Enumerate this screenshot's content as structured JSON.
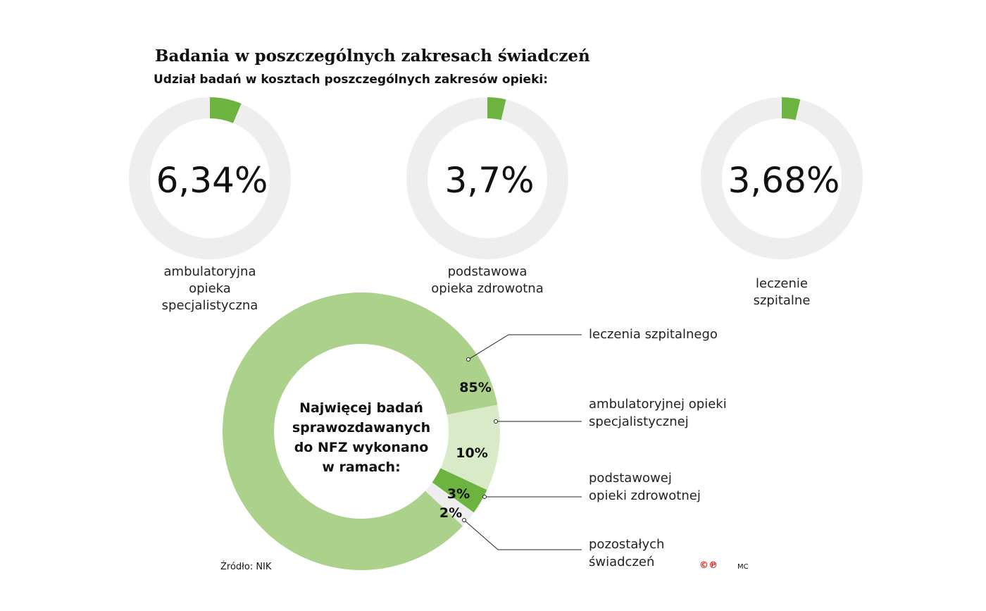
{
  "chart_data": [
    {
      "type": "pie",
      "variant": "donut",
      "title": "Badania w poszczególnych zakresach świadczeń",
      "subtitle": "Udział badań w kosztach poszczególnych zakresów opieki:",
      "label": "ambulatoryjna opieka specjalistyczna",
      "value": 6.34,
      "value_label": "6,34%",
      "colors": {
        "fill": "#6db33f",
        "track": "#eeeeee"
      }
    },
    {
      "type": "pie",
      "variant": "donut",
      "label": "podstawowa opieka zdrowotna",
      "value": 3.7,
      "value_label": "3,7%",
      "colors": {
        "fill": "#6db33f",
        "track": "#eeeeee"
      }
    },
    {
      "type": "pie",
      "variant": "donut",
      "label": "leczenie szpitalne",
      "value": 3.68,
      "value_label": "3,68%",
      "colors": {
        "fill": "#6db33f",
        "track": "#eeeeee"
      }
    },
    {
      "type": "pie",
      "variant": "donut",
      "center_text": "Najwięcej badań sprawozdawanych do NFZ wykonano w ramach:",
      "slices": [
        {
          "label": "leczenia szpitalnego",
          "value": 85,
          "value_label": "85%",
          "color": "#acd18a"
        },
        {
          "label": "ambulatoryjnej opieki specjalistycznej",
          "value": 10,
          "value_label": "10%",
          "color": "#d9eac8"
        },
        {
          "label": "podstawowej opieki zdrowotnej",
          "value": 3,
          "value_label": "3%",
          "color": "#6db33f"
        },
        {
          "label": "pozostałych świadczeń",
          "value": 2,
          "value_label": "2%",
          "color": "#eeeeee"
        }
      ]
    }
  ],
  "title": "Badania w poszczególnych zakresach świadczeń",
  "subtitle": "Udział badań w kosztach poszczególnych zakresów opieki:",
  "small_labels": [
    [
      "ambulatoryjna",
      "opieka",
      "specjalistyczna"
    ],
    [
      "podstawowa",
      "opieka zdrowotna"
    ],
    [
      "leczenie",
      "szpitalne"
    ]
  ],
  "center_lines": [
    "Najwięcej badań",
    "sprawozdawanych",
    "do NFZ wykonano",
    "w ramach:"
  ],
  "legend": [
    [
      "leczenia szpitalnego"
    ],
    [
      "ambulatoryjnej opieki",
      "specjalistycznej"
    ],
    [
      "podstawowej",
      "opieki zdrowotnej"
    ],
    [
      "pozostałych",
      "świadczeń"
    ]
  ],
  "source": "Źródło: NIK",
  "copyright": "©℗",
  "author": "MC"
}
